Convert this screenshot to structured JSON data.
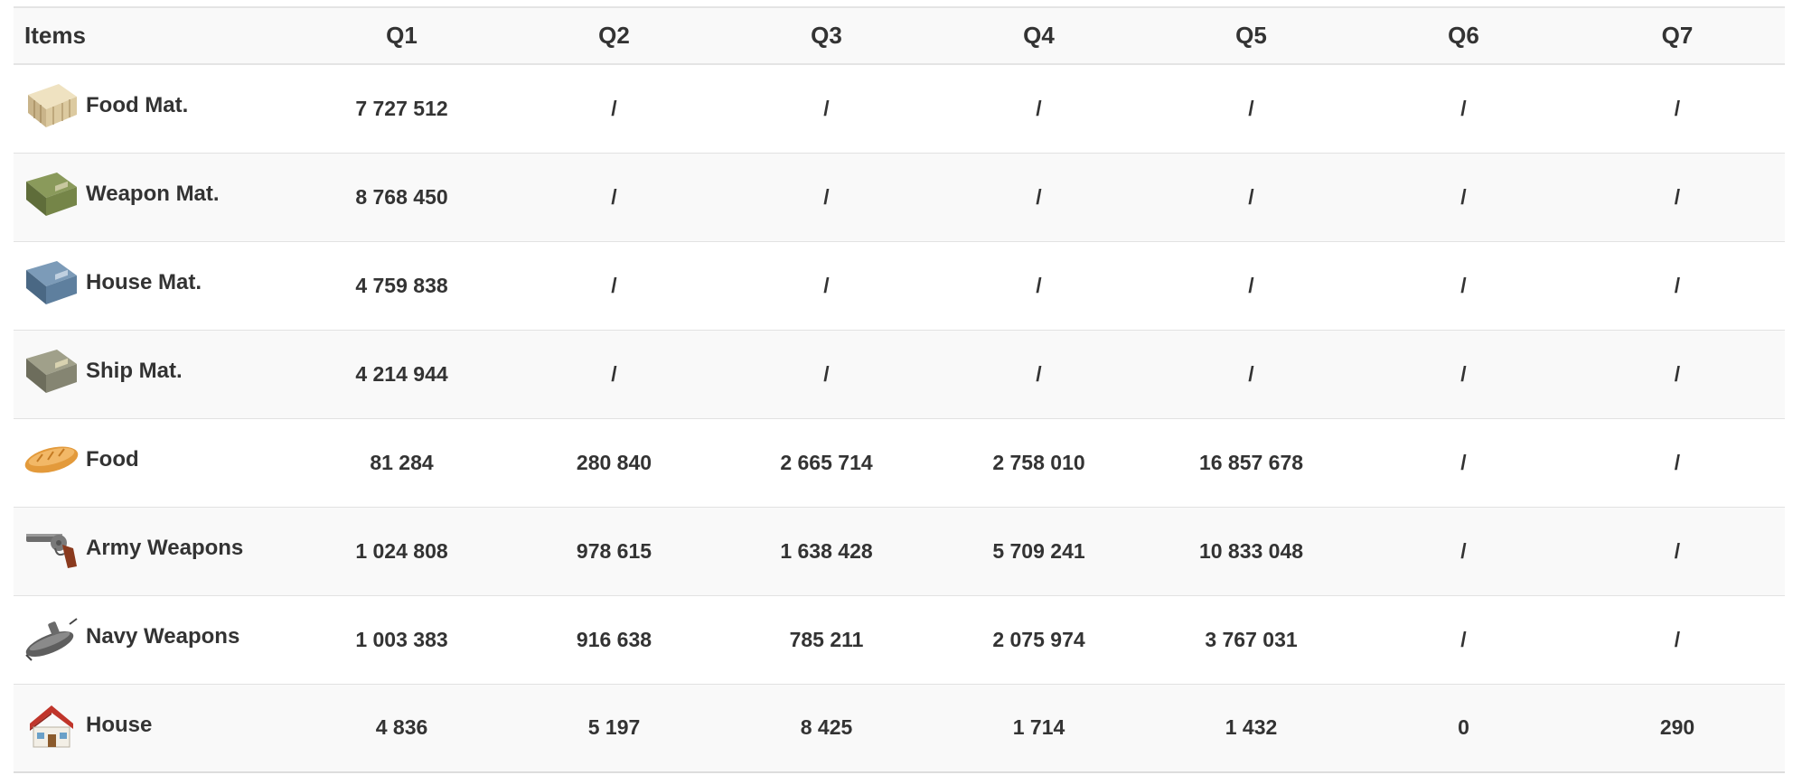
{
  "table": {
    "headers": [
      "Items",
      "Q1",
      "Q2",
      "Q3",
      "Q4",
      "Q5",
      "Q6",
      "Q7"
    ],
    "rows": [
      {
        "name": "Food Mat.",
        "icon": "food-materials-crate-icon",
        "values": [
          "7 727 512",
          "/",
          "/",
          "/",
          "/",
          "/",
          "/"
        ]
      },
      {
        "name": "Weapon Mat.",
        "icon": "weapon-materials-crate-icon",
        "values": [
          "8 768 450",
          "/",
          "/",
          "/",
          "/",
          "/",
          "/"
        ]
      },
      {
        "name": "House Mat.",
        "icon": "house-materials-crate-icon",
        "values": [
          "4 759 838",
          "/",
          "/",
          "/",
          "/",
          "/",
          "/"
        ]
      },
      {
        "name": "Ship Mat.",
        "icon": "ship-materials-crate-icon",
        "values": [
          "4 214 944",
          "/",
          "/",
          "/",
          "/",
          "/",
          "/"
        ]
      },
      {
        "name": "Food",
        "icon": "bread-icon",
        "values": [
          "81 284",
          "280 840",
          "2 665 714",
          "2 758 010",
          "16 857 678",
          "/",
          "/"
        ]
      },
      {
        "name": "Army Weapons",
        "icon": "revolver-icon",
        "values": [
          "1 024 808",
          "978 615",
          "1 638 428",
          "5 709 241",
          "10 833 048",
          "/",
          "/"
        ]
      },
      {
        "name": "Navy Weapons",
        "icon": "submarine-icon",
        "values": [
          "1 003 383",
          "916 638",
          "785 211",
          "2 075 974",
          "3 767 031",
          "/",
          "/"
        ]
      },
      {
        "name": "House",
        "icon": "house-icon",
        "values": [
          "4 836",
          "5 197",
          "8 425",
          "1 714",
          "1 432",
          "0",
          "290"
        ]
      }
    ]
  },
  "colors": {
    "header_bg": "#f9f9f9",
    "stripe_bg": "#f9f9f9",
    "border": "#e2e2e2",
    "text": "#333333"
  }
}
